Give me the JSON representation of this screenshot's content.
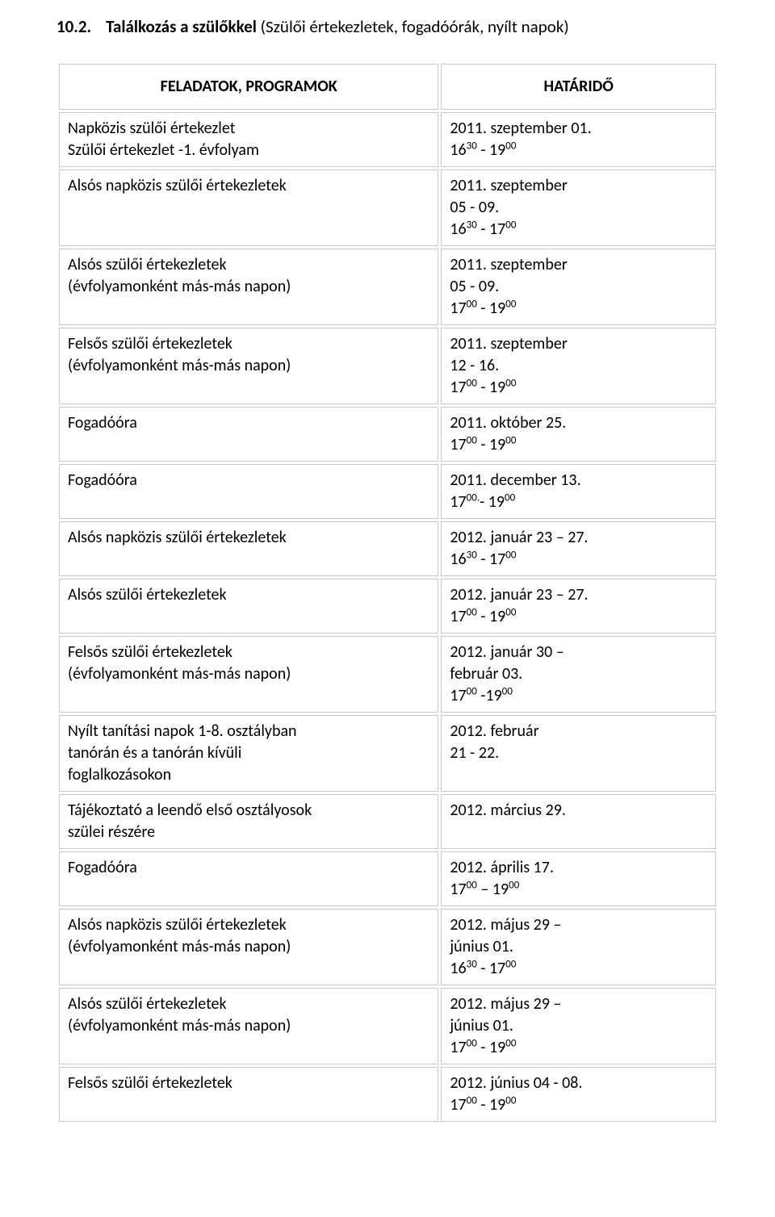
{
  "section": {
    "number": "10.2.",
    "title_bold": "Találkozás a szülőkkel",
    "title_light": " (Szülői értekezletek, fogadóórák, nyílt napok)"
  },
  "table": {
    "headers": {
      "left": "FELADATOK, PROGRAMOK",
      "right": "HATÁRIDŐ"
    },
    "rows": [
      {
        "left": "Napközis szülői értekezlet\nSzülői értekezlet -1. évfolyam",
        "right_html": "2011. szeptember 01.<br>16<sup>30</sup> - 19<sup>00</sup>"
      },
      {
        "left": "Alsós napközis szülői értekezletek",
        "right_html": "2011. szeptember<br>05 - 09.<br>16<sup>30</sup> - 17<sup>00</sup>"
      },
      {
        "left": "Alsós szülői értekezletek\n(évfolyamonként más-más napon)",
        "right_html": "2011. szeptember<br>05 - 09.<br>17<sup>00</sup> - 19<sup>00</sup>"
      },
      {
        "left": "Felsős szülői értekezletek\n(évfolyamonként más-más napon)",
        "right_html": "2011. szeptember<br>12 - 16.<br>17<sup>00</sup> - 19<sup>00</sup>"
      },
      {
        "left": "Fogadóóra",
        "right_html": "2011. október 25.<br>17<sup>00</sup> - 19<sup>00</sup>"
      },
      {
        "left": "Fogadóóra",
        "right_html": "2011. december 13.<br>17<sup>00.</sup>- 19<sup>00</sup>"
      },
      {
        "left": "Alsós napközis szülői értekezletek",
        "right_html": "2012. január 23 – 27.<br>16<sup>30</sup> - 17<sup>00</sup>"
      },
      {
        "left": "Alsós szülői értekezletek",
        "right_html": "2012. január 23 – 27.<br>17<sup>00</sup> - 19<sup>00</sup>"
      },
      {
        "left": "Felsős szülői értekezletek\n(évfolyamonként más-más napon)",
        "right_html": "2012. január 30 –<br>február 03.<br>17<sup>00</sup> -19<sup>00</sup>"
      },
      {
        "left": "Nyílt tanítási napok 1-8. osztályban\ntanórán és a tanórán kívüli\nfoglalkozásokon",
        "right_html": "2012. február<br>21 - 22."
      },
      {
        "left": "Tájékoztató a leendő első osztályosok\nszülei részére",
        "right_html": "2012. március 29."
      },
      {
        "left": "Fogadóóra",
        "right_html": "2012. április 17.<br>17<sup>00</sup> – 19<sup>00</sup>"
      },
      {
        "left": "Alsós napközis szülői értekezletek\n(évfolyamonként más-más napon)",
        "right_html": "2012. május 29 –<br> június 01.<br>16<sup>30</sup> - 17<sup>00</sup>"
      },
      {
        "left": "Alsós szülői értekezletek\n(évfolyamonként más-más napon)",
        "right_html": "2012. május 29 –<br>június 01.<br>17<sup>00</sup> - 19<sup>00</sup>"
      },
      {
        "left": "Felsős szülői értekezletek",
        "right_html": "2012. június 04 - 08.<br>17<sup>00</sup> - 19<sup>00</sup>"
      }
    ]
  }
}
